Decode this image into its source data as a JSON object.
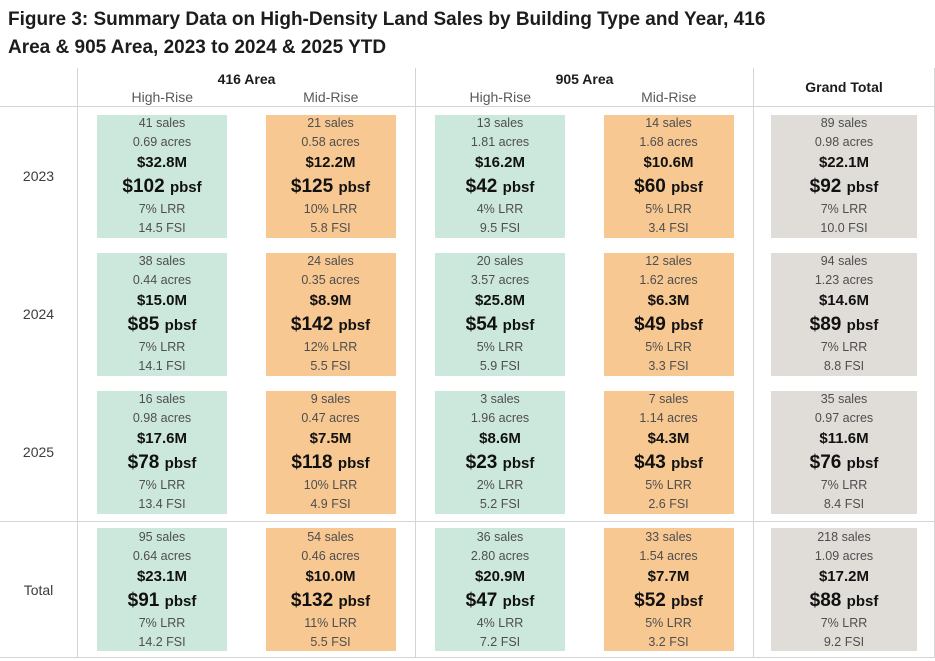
{
  "title_line1": "Figure 3: Summary Data on High-Density Land Sales by Building Type and Year, 416",
  "title_line2": "Area & 905 Area, 2023 to 2024 & 2025 YTD",
  "colors": {
    "highrise_fill": "#cce8dc",
    "midrise_fill": "#f8c893",
    "total_fill": "#e0ddd9",
    "border": "#d4d4d4"
  },
  "chart_data": {
    "type": "table",
    "title": "Figure 3: Summary Data on High-Density Land Sales by Building Type and Year, 416 Area & 905 Area, 2023 to 2024 & 2025 YTD",
    "grand_total_label": "Grand Total",
    "column_groups": [
      {
        "label": "416 Area",
        "columns": [
          {
            "label": "High-Rise",
            "style": "highrise"
          },
          {
            "label": "Mid-Rise",
            "style": "midrise"
          }
        ]
      },
      {
        "label": "905 Area",
        "columns": [
          {
            "label": "High-Rise",
            "style": "highrise"
          },
          {
            "label": "Mid-Rise",
            "style": "midrise"
          }
        ]
      }
    ],
    "metrics_order": [
      "sales",
      "acres",
      "total_price",
      "price_pbsf",
      "LRR",
      "FSI"
    ],
    "rows": [
      {
        "label": "2023",
        "cells": [
          {
            "style": "highrise",
            "lines": [
              "41 sales",
              "0.69 acres",
              "$32.8M",
              "$102 pbsf",
              "7% LRR",
              "14.5 FSI"
            ]
          },
          {
            "style": "midrise",
            "lines": [
              "21 sales",
              "0.58 acres",
              "$12.2M",
              "$125 pbsf",
              "10% LRR",
              "5.8 FSI"
            ]
          },
          {
            "style": "highrise",
            "lines": [
              "13 sales",
              "1.81 acres",
              "$16.2M",
              "$42 pbsf",
              "4% LRR",
              "9.5 FSI"
            ]
          },
          {
            "style": "midrise",
            "lines": [
              "14 sales",
              "1.68 acres",
              "$10.6M",
              "$60 pbsf",
              "5% LRR",
              "3.4 FSI"
            ]
          },
          {
            "style": "total",
            "lines": [
              "89 sales",
              "0.98 acres",
              "$22.1M",
              "$92 pbsf",
              "7% LRR",
              "10.0 FSI"
            ]
          }
        ]
      },
      {
        "label": "2024",
        "cells": [
          {
            "style": "highrise",
            "lines": [
              "38 sales",
              "0.44 acres",
              "$15.0M",
              "$85 pbsf",
              "7% LRR",
              "14.1 FSI"
            ]
          },
          {
            "style": "midrise",
            "lines": [
              "24 sales",
              "0.35 acres",
              "$8.9M",
              "$142 pbsf",
              "12% LRR",
              "5.5 FSI"
            ]
          },
          {
            "style": "highrise",
            "lines": [
              "20 sales",
              "3.57 acres",
              "$25.8M",
              "$54 pbsf",
              "5% LRR",
              "5.9 FSI"
            ]
          },
          {
            "style": "midrise",
            "lines": [
              "12 sales",
              "1.62 acres",
              "$6.3M",
              "$49 pbsf",
              "5% LRR",
              "3.3 FSI"
            ]
          },
          {
            "style": "total",
            "lines": [
              "94 sales",
              "1.23 acres",
              "$14.6M",
              "$89 pbsf",
              "7% LRR",
              "8.8 FSI"
            ]
          }
        ]
      },
      {
        "label": "2025",
        "cells": [
          {
            "style": "highrise",
            "lines": [
              "16 sales",
              "0.98 acres",
              "$17.6M",
              "$78 pbsf",
              "7% LRR",
              "13.4 FSI"
            ]
          },
          {
            "style": "midrise",
            "lines": [
              "9 sales",
              "0.47 acres",
              "$7.5M",
              "$118 pbsf",
              "10% LRR",
              "4.9 FSI"
            ]
          },
          {
            "style": "highrise",
            "lines": [
              "3 sales",
              "1.96 acres",
              "$8.6M",
              "$23 pbsf",
              "2% LRR",
              "5.2 FSI"
            ]
          },
          {
            "style": "midrise",
            "lines": [
              "7 sales",
              "1.14 acres",
              "$4.3M",
              "$43 pbsf",
              "5% LRR",
              "2.6 FSI"
            ]
          },
          {
            "style": "total",
            "lines": [
              "35 sales",
              "0.97 acres",
              "$11.6M",
              "$76 pbsf",
              "7% LRR",
              "8.4 FSI"
            ]
          }
        ]
      },
      {
        "label": "Total",
        "cells": [
          {
            "style": "highrise",
            "lines": [
              "95 sales",
              "0.64 acres",
              "$23.1M",
              "$91 pbsf",
              "7% LRR",
              "14.2 FSI"
            ]
          },
          {
            "style": "midrise",
            "lines": [
              "54 sales",
              "0.46 acres",
              "$10.0M",
              "$132 pbsf",
              "11% LRR",
              "5.5 FSI"
            ]
          },
          {
            "style": "highrise",
            "lines": [
              "36 sales",
              "2.80 acres",
              "$20.9M",
              "$47 pbsf",
              "4% LRR",
              "7.2 FSI"
            ]
          },
          {
            "style": "midrise",
            "lines": [
              "33 sales",
              "1.54 acres",
              "$7.7M",
              "$52 pbsf",
              "5% LRR",
              "3.2 FSI"
            ]
          },
          {
            "style": "total",
            "lines": [
              "218 sales",
              "1.09 acres",
              "$17.2M",
              "$88 pbsf",
              "7% LRR",
              "9.2 FSI"
            ]
          }
        ]
      }
    ]
  }
}
